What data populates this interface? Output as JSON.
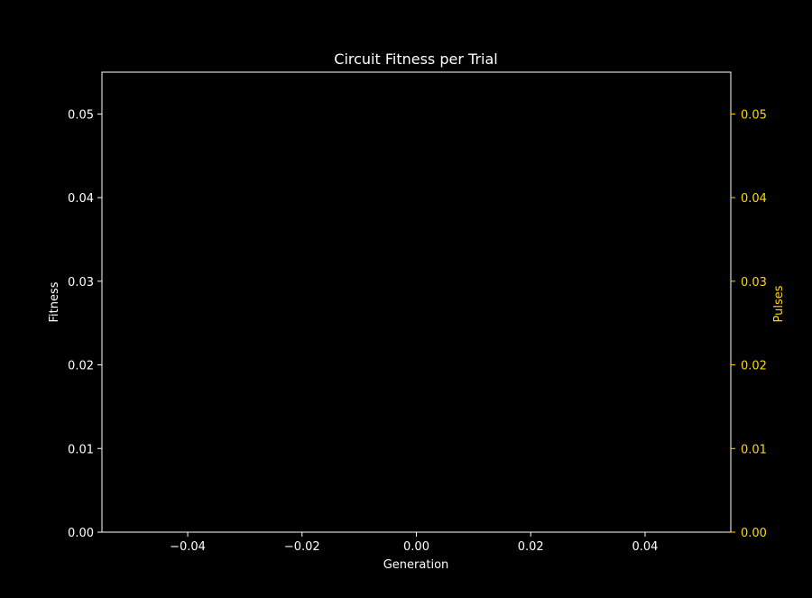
{
  "chart_data": {
    "type": "line",
    "title": "Circuit Fitness per Trial",
    "xlabel": "Generation",
    "ylabel": "Fitness",
    "y2label": "Pulses",
    "xlim": [
      -0.055,
      0.055
    ],
    "ylim": [
      0.0,
      0.055
    ],
    "y2lim": [
      0.0,
      0.055
    ],
    "xticks": [
      -0.04,
      -0.02,
      0.0,
      0.02,
      0.04
    ],
    "xtick_labels": [
      "−0.04",
      "−0.02",
      "0.00",
      "0.02",
      "0.04"
    ],
    "yticks": [
      0.0,
      0.01,
      0.02,
      0.03,
      0.04,
      0.05
    ],
    "ytick_labels": [
      "0.00",
      "0.01",
      "0.02",
      "0.03",
      "0.04",
      "0.05"
    ],
    "y2ticks": [
      0.0,
      0.01,
      0.02,
      0.03,
      0.04,
      0.05
    ],
    "y2tick_labels": [
      "0.00",
      "0.01",
      "0.02",
      "0.03",
      "0.04",
      "0.05"
    ],
    "grid": false,
    "series": [],
    "colors": {
      "background": "#000000",
      "foreground": "#ffffff",
      "secondary_axis": "#ffd700"
    }
  }
}
